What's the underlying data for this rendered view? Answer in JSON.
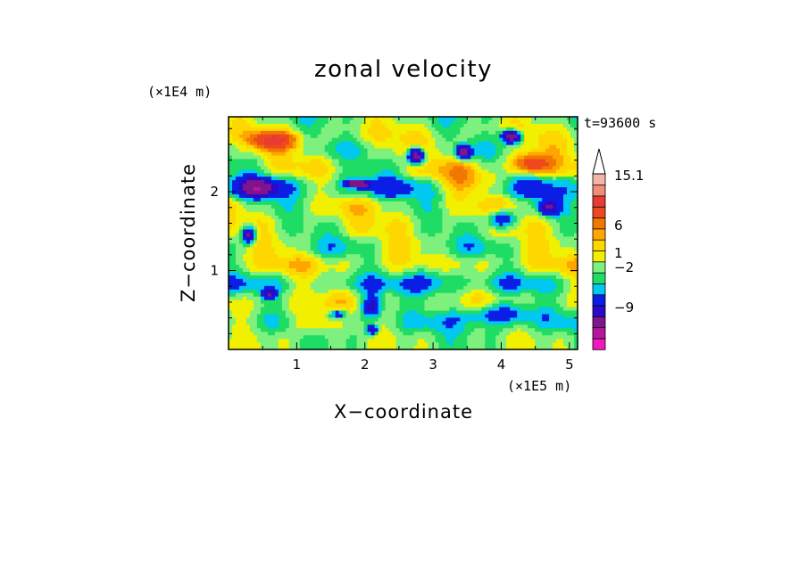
{
  "chart_data": {
    "type": "heatmap",
    "title": "zonal velocity",
    "xlabel": "X−coordinate",
    "ylabel": "Z−coordinate",
    "x_unit": "(×1E5 m)",
    "y_unit": "(×1E4 m)",
    "time_label": "t=93600 s",
    "xlim": [
      0,
      5.12
    ],
    "ylim": [
      0,
      2.95
    ],
    "x_ticks": [
      1,
      2,
      3,
      4,
      5
    ],
    "y_ticks": [
      1,
      2
    ],
    "colorbar": {
      "colors": [
        "#f019c0",
        "#b8159e",
        "#80148c",
        "#2a0ac8",
        "#0a1ee6",
        "#00c8f0",
        "#1edc64",
        "#7ef07e",
        "#f0f000",
        "#ffd700",
        "#ffa500",
        "#f07800",
        "#f0481e",
        "#e63c32",
        "#f08c78",
        "#f5b4aa"
      ],
      "ticks": [
        "15.1",
        "6",
        "1",
        "−2",
        "−9"
      ],
      "tick_values": [
        15.1,
        6,
        1,
        -2,
        -9
      ],
      "extend": "max"
    },
    "bands": [
      {
        "y": 0.1,
        "base": 0.5,
        "amp": 1.0
      },
      {
        "y": 0.35,
        "base": -0.5,
        "amp": 1.5
      },
      {
        "y": 0.6,
        "base": 1.5,
        "amp": 1.2
      },
      {
        "y": 0.85,
        "base": -1.0,
        "amp": 1.8
      },
      {
        "y": 1.05,
        "base": 2.0,
        "amp": 1.5
      },
      {
        "y": 1.3,
        "base": 0.2,
        "amp": 2.0
      },
      {
        "y": 1.55,
        "base": 1.0,
        "amp": 1.5
      },
      {
        "y": 1.8,
        "base": 1.2,
        "amp": 1.8
      },
      {
        "y": 2.05,
        "base": -1.5,
        "amp": 2.0
      },
      {
        "y": 2.3,
        "base": 1.0,
        "amp": 1.8
      },
      {
        "y": 2.55,
        "base": 0.5,
        "amp": 2.0
      },
      {
        "y": 2.75,
        "base": 1.5,
        "amp": 1.5
      },
      {
        "y": 2.9,
        "base": 0.0,
        "amp": 1.2
      }
    ],
    "features": [
      {
        "x": 2.75,
        "z": 2.45,
        "v": -11,
        "sx": 0.12,
        "sz": 0.1
      },
      {
        "x": 3.45,
        "z": 2.5,
        "v": -10,
        "sx": 0.1,
        "sz": 0.08
      },
      {
        "x": 4.15,
        "z": 2.7,
        "v": -11,
        "sx": 0.14,
        "sz": 0.08
      },
      {
        "x": 1.9,
        "z": 2.1,
        "v": -9,
        "sx": 0.18,
        "sz": 0.05
      },
      {
        "x": 0.3,
        "z": 1.45,
        "v": -9,
        "sx": 0.1,
        "sz": 0.1
      },
      {
        "x": 0.45,
        "z": 2.05,
        "v": -6,
        "sx": 0.28,
        "sz": 0.12
      },
      {
        "x": 0.65,
        "z": 2.65,
        "v": 9,
        "sx": 0.3,
        "sz": 0.1
      },
      {
        "x": 4.45,
        "z": 2.35,
        "v": 8,
        "sx": 0.28,
        "sz": 0.12
      },
      {
        "x": 4.0,
        "z": 1.65,
        "v": -6,
        "sx": 0.2,
        "sz": 0.12
      },
      {
        "x": 4.7,
        "z": 1.8,
        "v": -7,
        "sx": 0.15,
        "sz": 0.1
      },
      {
        "x": 2.1,
        "z": 0.55,
        "v": -6,
        "sx": 0.15,
        "sz": 0.15
      },
      {
        "x": 4.0,
        "z": 0.45,
        "v": -4,
        "sx": 0.5,
        "sz": 0.15
      },
      {
        "x": 1.2,
        "z": 0.35,
        "v": 4,
        "sx": 0.3,
        "sz": 0.15
      },
      {
        "x": 3.0,
        "z": 0.9,
        "v": -3,
        "sx": 0.35,
        "sz": 0.25
      },
      {
        "x": 0.6,
        "z": 0.7,
        "v": -6,
        "sx": 0.1,
        "sz": 0.06
      },
      {
        "x": 3.5,
        "z": 2.15,
        "v": 3,
        "sx": 0.5,
        "sz": 0.2
      },
      {
        "x": 1.6,
        "z": 0.45,
        "v": -5,
        "sx": 0.12,
        "sz": 0.06
      },
      {
        "x": 2.1,
        "z": 0.25,
        "v": -7,
        "sx": 0.08,
        "sz": 0.06
      }
    ]
  }
}
